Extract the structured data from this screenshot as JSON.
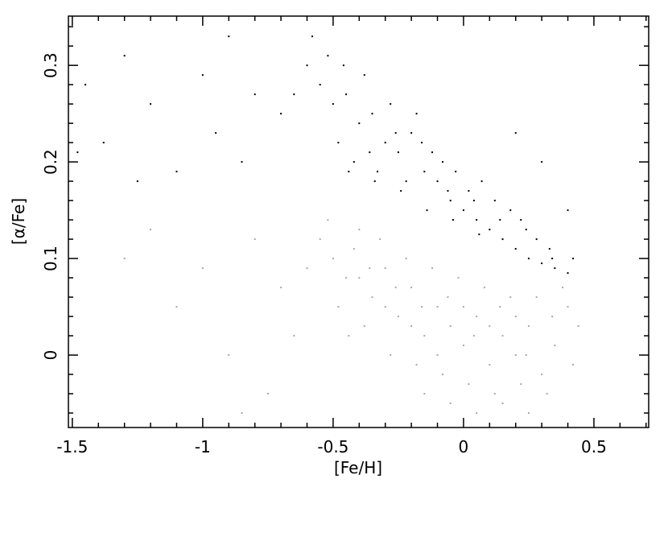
{
  "chart_data": {
    "type": "scatter",
    "xlabel": "[Fe/H]",
    "ylabel": "[α/Fe]",
    "xlim": [
      -1.515,
      0.71
    ],
    "ylim": [
      -0.075,
      0.351
    ],
    "xticks": [
      -1.5,
      -1,
      -0.5,
      0,
      0.5
    ],
    "yticks": [
      0,
      0.1,
      0.2,
      0.3
    ],
    "xminorticks": [
      -1.4,
      -1.3,
      -1.2,
      -1.1,
      -0.9,
      -0.8,
      -0.7,
      -0.6,
      -0.4,
      -0.3,
      -0.2,
      -0.1,
      0.1,
      0.2,
      0.3,
      0.4,
      0.6,
      0.7
    ],
    "yminorticks": [
      -0.06,
      -0.04,
      -0.02,
      0.02,
      0.04,
      0.06,
      0.08,
      0.12,
      0.14,
      0.16,
      0.18,
      0.22,
      0.24,
      0.26,
      0.28,
      0.32,
      0.34
    ],
    "series": [
      {
        "color": "#000000",
        "x": [
          -0.55,
          -0.5,
          -0.45,
          -0.4,
          -0.35,
          -0.3,
          -0.25,
          -0.2,
          -0.15,
          -0.1,
          -0.05,
          0,
          0.05,
          0.1,
          0.15,
          0.2,
          0.25,
          0.3,
          0.35,
          0.4,
          -0.6,
          -0.52,
          -0.48,
          -0.42,
          -0.38,
          -0.33,
          -0.28,
          -0.22,
          -0.18,
          -0.12,
          -0.08,
          -0.03,
          0.02,
          0.07,
          0.12,
          0.18,
          0.22,
          0.28,
          0.33,
          0.42,
          -0.65,
          -0.7,
          -0.58,
          -0.46,
          -0.36,
          -0.26,
          -0.16,
          -0.06,
          0.04,
          0.14,
          0.24,
          0.34,
          -0.44,
          -0.34,
          -0.24,
          -0.14,
          -0.04,
          0.06,
          -1.45,
          -1.38,
          -1.3,
          -1.2,
          -1.1,
          -1.0,
          -0.95,
          -0.9,
          -0.85,
          -0.8,
          -1.48,
          -1.25,
          0.3,
          0.2,
          0.4
        ],
        "y": [
          0.28,
          0.26,
          0.27,
          0.24,
          0.25,
          0.22,
          0.21,
          0.23,
          0.19,
          0.18,
          0.16,
          0.15,
          0.14,
          0.13,
          0.12,
          0.11,
          0.1,
          0.095,
          0.09,
          0.085,
          0.3,
          0.31,
          0.22,
          0.2,
          0.29,
          0.19,
          0.26,
          0.18,
          0.25,
          0.21,
          0.2,
          0.19,
          0.17,
          0.18,
          0.16,
          0.15,
          0.14,
          0.12,
          0.11,
          0.1,
          0.27,
          0.25,
          0.33,
          0.3,
          0.21,
          0.23,
          0.22,
          0.17,
          0.16,
          0.14,
          0.13,
          0.1,
          0.19,
          0.18,
          0.17,
          0.15,
          0.14,
          0.125,
          0.28,
          0.22,
          0.31,
          0.26,
          0.19,
          0.29,
          0.23,
          0.33,
          0.2,
          0.27,
          0.21,
          0.18,
          0.2,
          0.23,
          0.15
        ]
      },
      {
        "color": "#a8a8a8",
        "x": [
          -0.55,
          -0.5,
          -0.45,
          -0.4,
          -0.35,
          -0.3,
          -0.25,
          -0.2,
          -0.15,
          -0.1,
          -0.05,
          0,
          0.05,
          0.1,
          0.15,
          0.2,
          0.25,
          0.3,
          0.35,
          0.4,
          -0.48,
          -0.42,
          -0.38,
          -0.32,
          -0.28,
          -0.22,
          -0.18,
          -0.12,
          -0.08,
          -0.02,
          0.02,
          0.08,
          0.12,
          0.18,
          0.22,
          0.28,
          0.32,
          0.38,
          0.42,
          0.44,
          -0.6,
          -0.52,
          -0.44,
          -0.36,
          -0.26,
          -0.16,
          -0.06,
          0.04,
          0.14,
          0.24,
          0.34,
          -0.2,
          -0.1,
          0,
          0.1,
          0.2,
          -0.3,
          -0.4,
          -0.05,
          0.05,
          0.15,
          -0.15,
          0.25,
          -1.3,
          -1.1,
          -0.9,
          -0.8,
          -0.75,
          -0.7,
          -0.65,
          -1.2,
          -0.85,
          -1.0
        ],
        "y": [
          0.12,
          0.1,
          0.08,
          0.13,
          0.06,
          0.09,
          0.04,
          0.07,
          0.02,
          0.05,
          0.03,
          0.01,
          0.04,
          -0.01,
          0.02,
          0,
          0.03,
          -0.02,
          0.01,
          0.05,
          0.05,
          0.11,
          0.03,
          0.12,
          0,
          0.1,
          -0.01,
          0.09,
          -0.02,
          0.08,
          -0.03,
          0.07,
          -0.04,
          0.06,
          -0.03,
          0.06,
          -0.04,
          0.07,
          -0.01,
          0.03,
          0.09,
          0.14,
          0.02,
          0.09,
          0.07,
          0.05,
          0.06,
          0.02,
          0.05,
          0,
          0.04,
          0.03,
          0,
          0.05,
          0.03,
          0.04,
          0.05,
          0.08,
          -0.05,
          -0.06,
          -0.05,
          -0.04,
          -0.06,
          0.1,
          0.05,
          0,
          0.12,
          -0.04,
          0.07,
          0.02,
          0.13,
          -0.06,
          0.09
        ]
      }
    ]
  }
}
